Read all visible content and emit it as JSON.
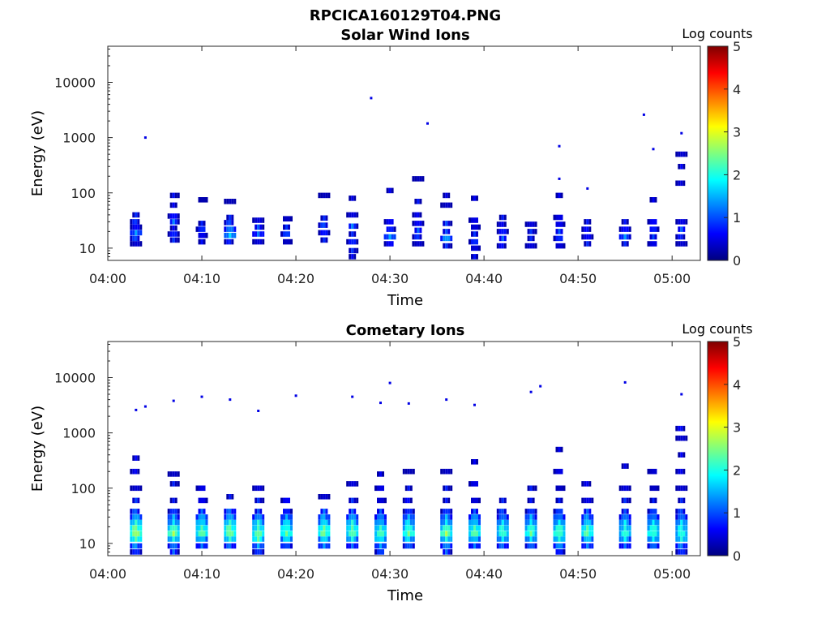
{
  "figure": {
    "title": "RPCICA160129T04.PNG"
  },
  "colormap": [
    "#00007f",
    "#0000ff",
    "#007fff",
    "#00ffff",
    "#7fff7f",
    "#ffff00",
    "#ff7f00",
    "#ff0000",
    "#7f0000"
  ],
  "chart_data": [
    {
      "type": "heatmap",
      "title": "Solar Wind Ions",
      "xlabel": "Time",
      "ylabel": "Energy (eV)",
      "xlim": [
        "04:00",
        "05:03"
      ],
      "ylim": [
        6,
        45000
      ],
      "yscale": "log",
      "x_ticks": [
        "04:00",
        "04:10",
        "04:20",
        "04:30",
        "04:40",
        "04:50",
        "05:00"
      ],
      "y_ticks": [
        10,
        100,
        1000,
        10000
      ],
      "y_tick_labels": [
        "10",
        "100",
        "1000",
        "10000"
      ],
      "colorbar": {
        "label": "Log counts",
        "ticks": [
          0,
          1,
          2,
          3,
          4,
          5
        ],
        "range": [
          0,
          5
        ]
      },
      "clusters": [
        {
          "t": "04:03",
          "e": [
            12,
            15,
            19,
            24,
            30,
            40
          ],
          "c": [
            0.6,
            1.0,
            1.3,
            0.8,
            0.9,
            0.7
          ]
        },
        {
          "t": "04:07",
          "e": [
            14,
            18,
            23,
            30,
            38,
            60,
            90
          ],
          "c": [
            0.7,
            0.9,
            0.6,
            1.1,
            0.8,
            0.6,
            0.5
          ]
        },
        {
          "t": "04:10",
          "e": [
            13,
            17,
            22,
            28,
            75
          ],
          "c": [
            0.6,
            0.8,
            0.9,
            0.7,
            0.5
          ]
        },
        {
          "t": "04:13",
          "e": [
            13,
            17,
            22,
            29,
            36,
            70
          ],
          "c": [
            0.8,
            1.6,
            1.4,
            1.0,
            0.7,
            0.5
          ]
        },
        {
          "t": "04:16",
          "e": [
            13,
            18,
            24,
            32
          ],
          "c": [
            0.6,
            1.2,
            0.9,
            0.6
          ]
        },
        {
          "t": "04:19",
          "e": [
            13,
            18,
            24,
            34
          ],
          "c": [
            0.6,
            1.0,
            0.8,
            0.6
          ]
        },
        {
          "t": "04:23",
          "e": [
            14,
            19,
            26,
            35,
            90
          ],
          "c": [
            0.7,
            0.9,
            1.0,
            0.7,
            0.5
          ]
        },
        {
          "t": "04:26",
          "e": [
            7,
            9,
            13,
            18,
            25,
            40,
            80
          ],
          "c": [
            0.6,
            0.7,
            0.9,
            0.8,
            1.1,
            0.6,
            0.5
          ]
        },
        {
          "t": "04:30",
          "e": [
            12,
            16,
            22,
            30,
            110
          ],
          "c": [
            0.7,
            1.4,
            1.0,
            0.7,
            0.5
          ]
        },
        {
          "t": "04:33",
          "e": [
            12,
            16,
            21,
            28,
            40,
            70,
            180
          ],
          "c": [
            0.6,
            0.9,
            1.0,
            0.8,
            0.6,
            0.6,
            0.5
          ]
        },
        {
          "t": "04:36",
          "e": [
            11,
            15,
            20,
            28,
            60,
            90
          ],
          "c": [
            0.7,
            1.5,
            1.0,
            0.8,
            0.5,
            0.5
          ]
        },
        {
          "t": "04:39",
          "e": [
            7,
            10,
            13,
            18,
            24,
            32,
            80
          ],
          "c": [
            0.6,
            0.7,
            0.9,
            0.8,
            0.7,
            0.6,
            0.5
          ]
        },
        {
          "t": "04:42",
          "e": [
            11,
            15,
            20,
            27,
            36
          ],
          "c": [
            0.7,
            1.0,
            0.9,
            0.6,
            0.6
          ]
        },
        {
          "t": "04:45",
          "e": [
            11,
            15,
            20,
            27
          ],
          "c": [
            0.6,
            0.8,
            0.7,
            0.6
          ]
        },
        {
          "t": "04:48",
          "e": [
            11,
            15,
            20,
            27,
            36,
            90
          ],
          "c": [
            0.7,
            0.9,
            1.0,
            0.8,
            0.6,
            0.5
          ]
        },
        {
          "t": "04:51",
          "e": [
            12,
            16,
            22,
            30
          ],
          "c": [
            0.7,
            0.8,
            0.7,
            0.6
          ]
        },
        {
          "t": "04:55",
          "e": [
            12,
            16,
            22,
            30
          ],
          "c": [
            0.8,
            1.2,
            0.8,
            0.7
          ]
        },
        {
          "t": "04:58",
          "e": [
            12,
            16,
            22,
            30,
            75
          ],
          "c": [
            0.6,
            0.9,
            1.0,
            0.7,
            0.5
          ]
        },
        {
          "t": "05:01",
          "e": [
            12,
            16,
            22,
            30,
            150,
            300,
            500
          ],
          "c": [
            0.6,
            0.8,
            1.0,
            0.7,
            0.5,
            0.5,
            0.6
          ]
        }
      ],
      "points": [
        {
          "t": "04:04",
          "e": 1000
        },
        {
          "t": "04:28",
          "e": 5200
        },
        {
          "t": "04:34",
          "e": 1800
        },
        {
          "t": "04:48",
          "e": 700
        },
        {
          "t": "04:48",
          "e": 180
        },
        {
          "t": "04:51",
          "e": 120
        },
        {
          "t": "04:57",
          "e": 2600
        },
        {
          "t": "04:58",
          "e": 620
        },
        {
          "t": "05:01",
          "e": 1200
        }
      ]
    },
    {
      "type": "heatmap",
      "title": "Cometary Ions",
      "xlabel": "Time",
      "ylabel": "Energy (eV)",
      "xlim": [
        "04:00",
        "05:03"
      ],
      "ylim": [
        6,
        45000
      ],
      "yscale": "log",
      "x_ticks": [
        "04:00",
        "04:10",
        "04:20",
        "04:30",
        "04:40",
        "04:50",
        "05:00"
      ],
      "y_ticks": [
        10,
        100,
        1000,
        10000
      ],
      "y_tick_labels": [
        "10",
        "100",
        "1000",
        "10000"
      ],
      "colorbar": {
        "label": "Log counts",
        "ticks": [
          0,
          1,
          2,
          3,
          4,
          5
        ],
        "range": [
          0,
          5
        ]
      },
      "clusters": [
        {
          "t": "04:03",
          "e": [
            7,
            9,
            12,
            15,
            19,
            24,
            30,
            38,
            60,
            100,
            200,
            350
          ],
          "c": [
            1.0,
            1.4,
            2.2,
            2.8,
            2.5,
            2.0,
            1.6,
            1.1,
            0.8,
            0.6,
            0.6,
            0.5
          ]
        },
        {
          "t": "04:07",
          "e": [
            7,
            9,
            12,
            15,
            19,
            24,
            30,
            38,
            60,
            120,
            180
          ],
          "c": [
            1.0,
            1.3,
            2.0,
            2.6,
            2.3,
            1.8,
            1.4,
            1.0,
            0.7,
            0.6,
            0.5
          ]
        },
        {
          "t": "04:10",
          "e": [
            9,
            12,
            15,
            19,
            24,
            30,
            38,
            60,
            100
          ],
          "c": [
            1.2,
            1.8,
            2.4,
            2.2,
            1.9,
            1.5,
            1.1,
            0.8,
            0.6
          ]
        },
        {
          "t": "04:13",
          "e": [
            9,
            12,
            15,
            19,
            24,
            30,
            38,
            70
          ],
          "c": [
            1.2,
            2.0,
            2.6,
            2.4,
            2.0,
            1.6,
            1.2,
            0.6
          ]
        },
        {
          "t": "04:16",
          "e": [
            7,
            9,
            12,
            15,
            19,
            24,
            30,
            38,
            60,
            100
          ],
          "c": [
            1.0,
            1.5,
            2.2,
            2.5,
            2.2,
            1.9,
            1.4,
            1.0,
            0.7,
            0.6
          ]
        },
        {
          "t": "04:19",
          "e": [
            9,
            12,
            15,
            19,
            24,
            30,
            38,
            60
          ],
          "c": [
            1.2,
            1.8,
            2.4,
            2.2,
            1.8,
            1.4,
            1.0,
            0.7
          ]
        },
        {
          "t": "04:23",
          "e": [
            9,
            12,
            15,
            19,
            24,
            30,
            38,
            70
          ],
          "c": [
            1.3,
            1.9,
            2.5,
            2.3,
            1.9,
            1.5,
            1.1,
            0.6
          ]
        },
        {
          "t": "04:26",
          "e": [
            9,
            12,
            15,
            19,
            24,
            30,
            38,
            60,
            120
          ],
          "c": [
            1.2,
            1.8,
            2.4,
            2.3,
            1.9,
            1.5,
            1.1,
            0.7,
            0.6
          ]
        },
        {
          "t": "04:29",
          "e": [
            7,
            9,
            12,
            15,
            19,
            24,
            30,
            38,
            60,
            100,
            180
          ],
          "c": [
            1.0,
            1.4,
            2.0,
            2.3,
            2.1,
            1.7,
            1.3,
            1.0,
            0.7,
            0.6,
            0.5
          ]
        },
        {
          "t": "04:32",
          "e": [
            9,
            12,
            15,
            19,
            24,
            30,
            38,
            60,
            100,
            200
          ],
          "c": [
            1.2,
            1.8,
            2.4,
            2.2,
            1.8,
            1.4,
            1.0,
            0.7,
            0.6,
            0.5
          ]
        },
        {
          "t": "04:36",
          "e": [
            7,
            9,
            12,
            15,
            19,
            24,
            30,
            38,
            60,
            100,
            200
          ],
          "c": [
            1.0,
            1.4,
            2.0,
            2.6,
            2.3,
            1.8,
            1.4,
            1.0,
            0.7,
            0.6,
            0.5
          ]
        },
        {
          "t": "04:39",
          "e": [
            9,
            12,
            15,
            19,
            24,
            30,
            38,
            60,
            120,
            300
          ],
          "c": [
            1.2,
            1.8,
            2.4,
            2.2,
            1.8,
            1.4,
            1.0,
            0.7,
            0.6,
            0.5
          ]
        },
        {
          "t": "04:42",
          "e": [
            9,
            12,
            15,
            19,
            24,
            30,
            38,
            60
          ],
          "c": [
            1.2,
            1.7,
            2.3,
            2.1,
            1.7,
            1.3,
            1.0,
            0.7
          ]
        },
        {
          "t": "04:45",
          "e": [
            9,
            12,
            15,
            19,
            24,
            30,
            38,
            60,
            100
          ],
          "c": [
            1.2,
            1.8,
            2.3,
            2.2,
            1.8,
            1.4,
            1.0,
            0.7,
            0.6
          ]
        },
        {
          "t": "04:48",
          "e": [
            7,
            9,
            12,
            15,
            19,
            24,
            30,
            38,
            60,
            100,
            200,
            500
          ],
          "c": [
            1.0,
            1.4,
            2.0,
            2.4,
            2.2,
            1.8,
            1.4,
            1.0,
            0.7,
            0.6,
            0.6,
            0.5
          ]
        },
        {
          "t": "04:51",
          "e": [
            9,
            12,
            15,
            19,
            24,
            30,
            38,
            60,
            120
          ],
          "c": [
            1.2,
            1.8,
            2.4,
            2.2,
            1.8,
            1.4,
            1.0,
            0.7,
            0.6
          ]
        },
        {
          "t": "04:55",
          "e": [
            9,
            12,
            15,
            19,
            24,
            30,
            38,
            60,
            100,
            250
          ],
          "c": [
            1.2,
            1.7,
            2.2,
            2.0,
            1.7,
            1.3,
            1.0,
            0.7,
            0.6,
            0.5
          ]
        },
        {
          "t": "04:58",
          "e": [
            9,
            12,
            15,
            19,
            24,
            30,
            38,
            60,
            100,
            200
          ],
          "c": [
            1.2,
            1.8,
            2.3,
            2.1,
            1.8,
            1.4,
            1.0,
            0.7,
            0.6,
            0.5
          ]
        },
        {
          "t": "05:01",
          "e": [
            7,
            9,
            12,
            15,
            19,
            24,
            30,
            38,
            60,
            100,
            200,
            400,
            800,
            1200
          ],
          "c": [
            1.0,
            1.3,
            1.9,
            2.2,
            2.0,
            1.7,
            1.3,
            1.0,
            0.7,
            0.6,
            0.6,
            0.5,
            0.6,
            0.7
          ]
        }
      ],
      "points": [
        {
          "t": "04:03",
          "e": 2600
        },
        {
          "t": "04:04",
          "e": 3000
        },
        {
          "t": "04:07",
          "e": 3800
        },
        {
          "t": "04:10",
          "e": 4500
        },
        {
          "t": "04:13",
          "e": 4000
        },
        {
          "t": "04:16",
          "e": 2500
        },
        {
          "t": "04:20",
          "e": 4700
        },
        {
          "t": "04:26",
          "e": 4500
        },
        {
          "t": "04:29",
          "e": 3500
        },
        {
          "t": "04:30",
          "e": 8000
        },
        {
          "t": "04:32",
          "e": 3400
        },
        {
          "t": "04:36",
          "e": 4000
        },
        {
          "t": "04:39",
          "e": 3200
        },
        {
          "t": "04:45",
          "e": 5500
        },
        {
          "t": "04:46",
          "e": 7000
        },
        {
          "t": "04:55",
          "e": 8200
        },
        {
          "t": "05:01",
          "e": 5000
        }
      ]
    }
  ]
}
